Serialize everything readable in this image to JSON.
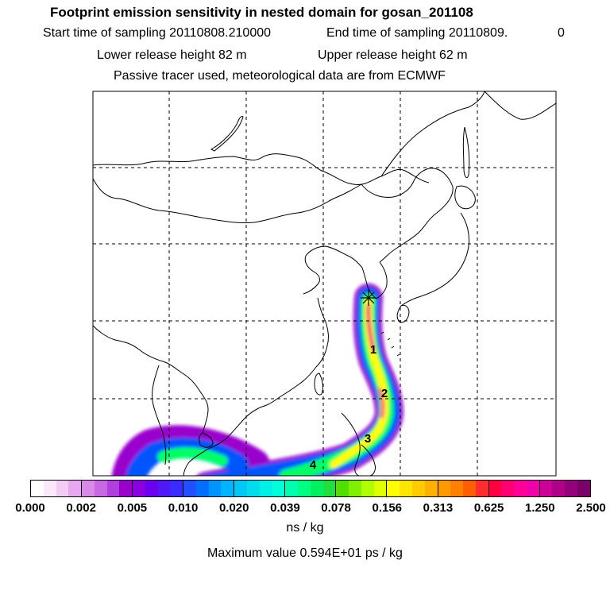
{
  "header": {
    "title": "Footprint emission sensitivity in nested domain for gosan_201108",
    "start_label": "Start time of sampling 20110808.210000",
    "end_label": "End time of sampling 20110809.",
    "end_value": "0",
    "lower_label": "Lower release height   82 m",
    "upper_label": "Upper release height   62 m",
    "tracer_label": "Passive tracer used, meteorological data are from ECMWF"
  },
  "map": {
    "release_marker_icon": "star-burst-icon",
    "day_labels": [
      "1",
      "2",
      "3",
      "4"
    ],
    "plume_colors": [
      "#9900cc",
      "#0055ff",
      "#00e5e5",
      "#00ff66",
      "#ffff00",
      "#ff9900",
      "#ff0080"
    ],
    "line_color": "#000000"
  },
  "colorbar": {
    "tick_labels": [
      "0.000",
      "0.002",
      "0.005",
      "0.010",
      "0.020",
      "0.039",
      "0.078",
      "0.156",
      "0.313",
      "0.625",
      "1.250",
      "2.500"
    ],
    "colors": [
      "#ffffff",
      "#fbe8fb",
      "#f3ccf5",
      "#e8a8f0",
      "#d98ae8",
      "#c868e3",
      "#b040dd",
      "#9900cc",
      "#8a00e0",
      "#6a00ee",
      "#4f18f5",
      "#3a2cff",
      "#2050ff",
      "#0070ff",
      "#0094ff",
      "#00b4ff",
      "#00c8f5",
      "#00dcea",
      "#00f0e5",
      "#00ffd8",
      "#00ffb0",
      "#00ff80",
      "#00f060",
      "#20e040",
      "#50e000",
      "#80f000",
      "#b0ff00",
      "#e0ff00",
      "#ffff00",
      "#ffe600",
      "#ffcc00",
      "#ffb000",
      "#ff9a00",
      "#ff7f00",
      "#ff5f00",
      "#ff2d2d",
      "#ff0040",
      "#ff0070",
      "#ff0099",
      "#ee00aa",
      "#cc0099",
      "#b0008a",
      "#95007a",
      "#7a006a"
    ],
    "units": "ns / kg"
  },
  "footer": {
    "max_label": "Maximum value  0.594E+01 ps / kg"
  }
}
